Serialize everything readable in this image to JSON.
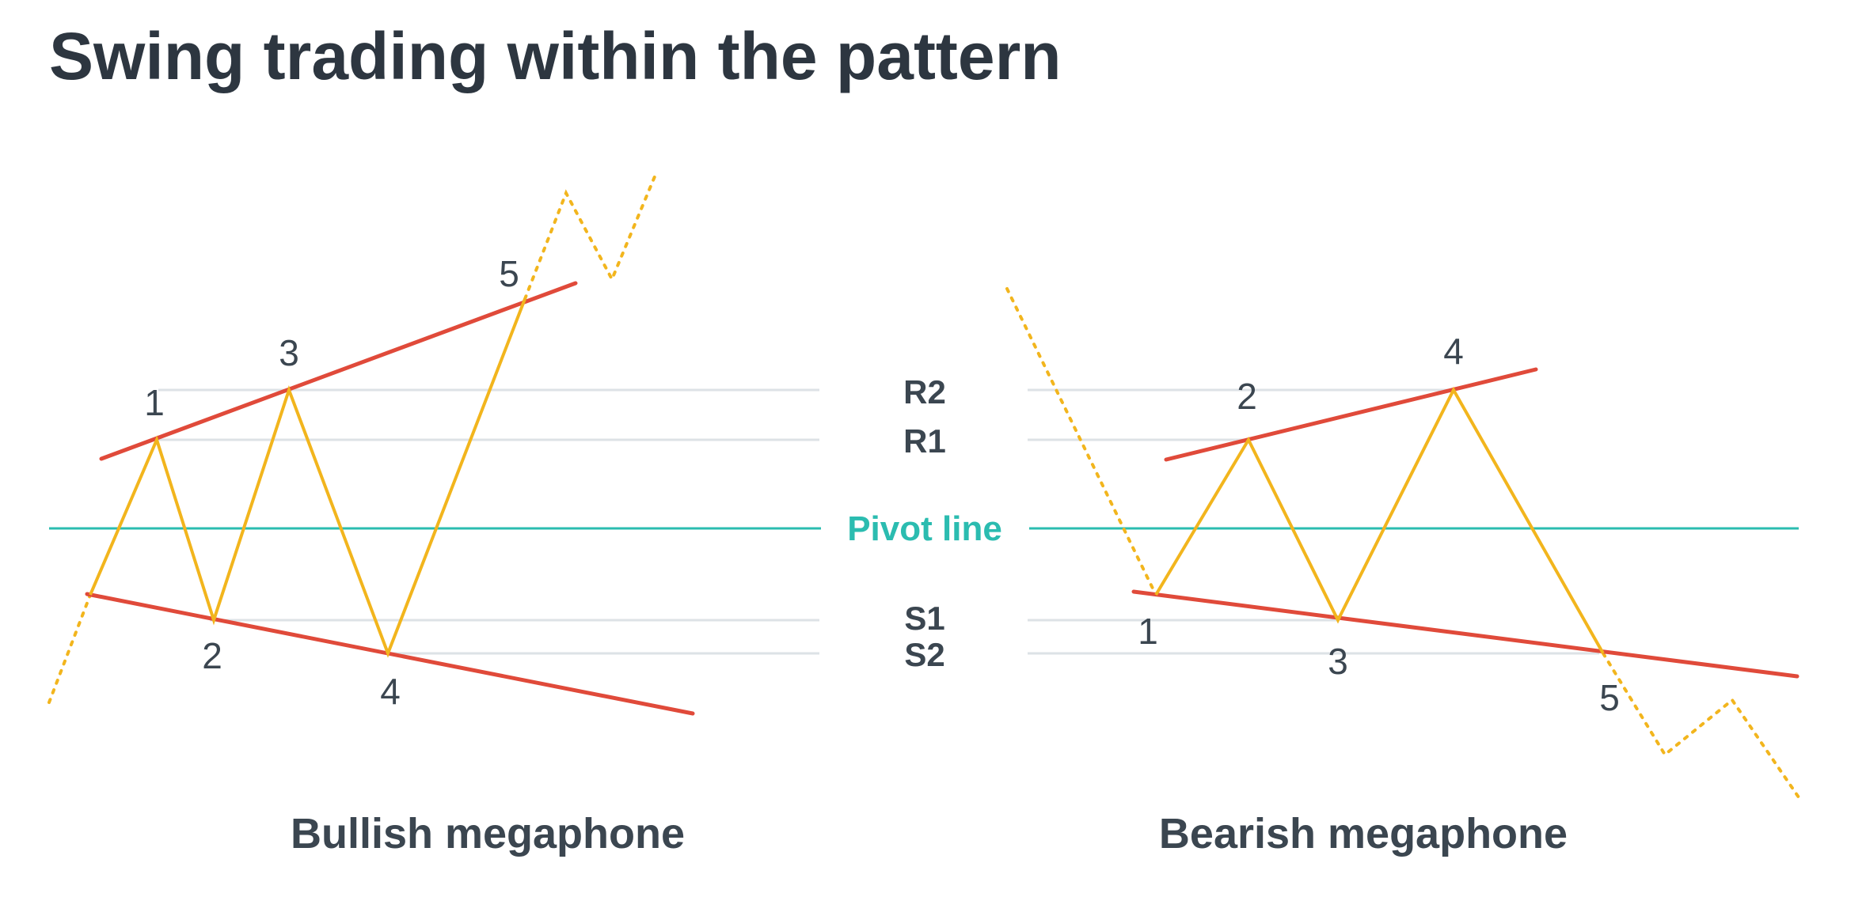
{
  "title": "Swing trading within the pattern",
  "colors": {
    "text": "#2d3640",
    "level_label": "#3b4650",
    "grid": "#dde2e6",
    "pivot": "#2bbcb0",
    "trend": "#e04a3a",
    "price": "#f2b51d"
  },
  "levels": {
    "r2": "R2",
    "r1": "R1",
    "pivot": "Pivot line",
    "s1": "S1",
    "s2": "S2"
  },
  "bullish": {
    "caption": "Bullish megaphone",
    "points": [
      "1",
      "2",
      "3",
      "4",
      "5"
    ]
  },
  "bearish": {
    "caption": "Bearish megaphone",
    "points": [
      "1",
      "2",
      "3",
      "4",
      "5"
    ]
  }
}
